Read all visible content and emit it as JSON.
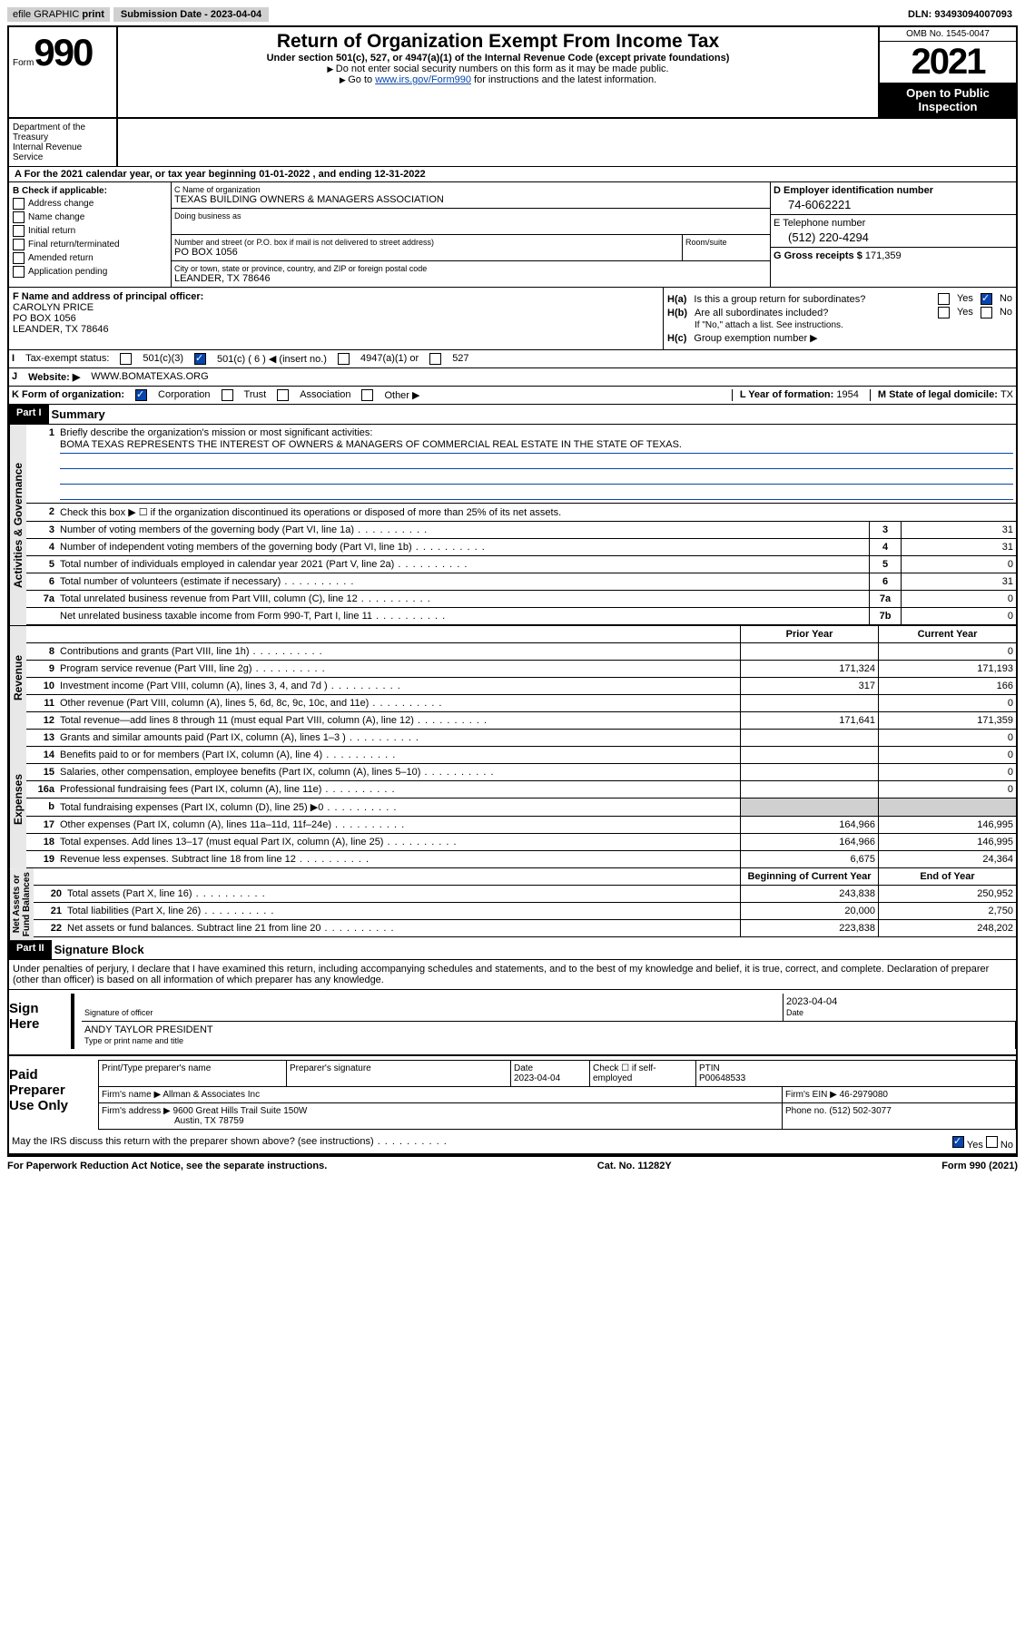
{
  "header": {
    "efile_text": "efile GRAPHIC",
    "print": "print",
    "submission_label": "Submission Date - ",
    "submission_date": "2023-04-04",
    "dln_label": "DLN: ",
    "dln": "93493094007093"
  },
  "form": {
    "form_word": "Form",
    "number": "990",
    "title": "Return of Organization Exempt From Income Tax",
    "subtitle": "Under section 501(c), 527, or 4947(a)(1) of the Internal Revenue Code (except private foundations)",
    "instr1": "Do not enter social security numbers on this form as it may be made public.",
    "instr2_pre": "Go to ",
    "instr2_link": "www.irs.gov/Form990",
    "instr2_post": " for instructions and the latest information.",
    "omb": "OMB No. 1545-0047",
    "year": "2021",
    "inspection1": "Open to Public",
    "inspection2": "Inspection",
    "dept1": "Department of the Treasury",
    "dept2": "Internal Revenue Service"
  },
  "period": {
    "text_pre": "For the 2021 calendar year, or tax year beginning ",
    "begin": "01-01-2022",
    "text_mid": " , and ending ",
    "end": "12-31-2022"
  },
  "section_b": {
    "label": "B Check if applicable:",
    "items": [
      "Address change",
      "Name change",
      "Initial return",
      "Final return/terminated",
      "Amended return",
      "Application pending"
    ]
  },
  "section_c": {
    "name_label": "C Name of organization",
    "name": "TEXAS BUILDING OWNERS & MANAGERS ASSOCIATION",
    "dba_label": "Doing business as",
    "street_label": "Number and street (or P.O. box if mail is not delivered to street address)",
    "room_label": "Room/suite",
    "street": "PO BOX 1056",
    "city_label": "City or town, state or province, country, and ZIP or foreign postal code",
    "city": "LEANDER, TX  78646"
  },
  "section_d": {
    "label": "D Employer identification number",
    "ein": "74-6062221",
    "phone_label": "E Telephone number",
    "phone": "(512) 220-4294",
    "gross_label": "G Gross receipts $ ",
    "gross": "171,359"
  },
  "section_f": {
    "label": "F Name and address of principal officer:",
    "name": "CAROLYN PRICE",
    "street": "PO BOX 1056",
    "city": "LEANDER, TX  78646"
  },
  "section_h": {
    "a_label": "H(a)",
    "a_text": "Is this a group return for subordinates?",
    "b_label": "H(b)",
    "b_text": "Are all subordinates included?",
    "attach": "If \"No,\" attach a list. See instructions.",
    "c_label": "H(c)",
    "c_text": "Group exemption number ▶",
    "yes": "Yes",
    "no": "No"
  },
  "section_i": {
    "label": "Tax-exempt status:",
    "opt1": "501(c)(3)",
    "opt2_pre": "501(c) ( ",
    "opt2_num": "6",
    "opt2_post": " ) ◀ (insert no.)",
    "opt3": "4947(a)(1) or",
    "opt4": "527"
  },
  "section_j": {
    "label": "Website: ▶",
    "url": "WWW.BOMATEXAS.ORG"
  },
  "section_k": {
    "label": "K Form of organization:",
    "opts": [
      "Corporation",
      "Trust",
      "Association",
      "Other ▶"
    ],
    "l_label": "L Year of formation: ",
    "l_val": "1954",
    "m_label": "M State of legal domicile: ",
    "m_val": "TX"
  },
  "part1": {
    "header": "Part I",
    "title": "Summary",
    "mission_label": "Briefly describe the organization's mission or most significant activities:",
    "mission": "BOMA TEXAS REPRESENTS THE INTEREST OF OWNERS & MANAGERS OF COMMERCIAL REAL ESTATE IN THE STATE OF TEXAS.",
    "line2": "Check this box ▶ ☐  if the organization discontinued its operations or disposed of more than 25% of its net assets.",
    "tabs": {
      "governance": "Activities & Governance",
      "revenue": "Revenue",
      "expenses": "Expenses",
      "netassets": "Net Assets or\nFund Balances"
    },
    "col_prior": "Prior Year",
    "col_current": "Current Year",
    "col_begin": "Beginning of Current Year",
    "col_end": "End of Year"
  },
  "governance_lines": [
    {
      "num": "3",
      "text": "Number of voting members of the governing body (Part VI, line 1a)",
      "label": "3",
      "val": "31"
    },
    {
      "num": "4",
      "text": "Number of independent voting members of the governing body (Part VI, line 1b)",
      "label": "4",
      "val": "31"
    },
    {
      "num": "5",
      "text": "Total number of individuals employed in calendar year 2021 (Part V, line 2a)",
      "label": "5",
      "val": "0"
    },
    {
      "num": "6",
      "text": "Total number of volunteers (estimate if necessary)",
      "label": "6",
      "val": "31"
    },
    {
      "num": "7a",
      "text": "Total unrelated business revenue from Part VIII, column (C), line 12",
      "label": "7a",
      "val": "0"
    },
    {
      "num": "",
      "text": "Net unrelated business taxable income from Form 990-T, Part I, line 11",
      "label": "7b",
      "val": "0"
    }
  ],
  "revenue_lines": [
    {
      "num": "8",
      "text": "Contributions and grants (Part VIII, line 1h)",
      "prior": "",
      "current": "0"
    },
    {
      "num": "9",
      "text": "Program service revenue (Part VIII, line 2g)",
      "prior": "171,324",
      "current": "171,193"
    },
    {
      "num": "10",
      "text": "Investment income (Part VIII, column (A), lines 3, 4, and 7d )",
      "prior": "317",
      "current": "166"
    },
    {
      "num": "11",
      "text": "Other revenue (Part VIII, column (A), lines 5, 6d, 8c, 9c, 10c, and 11e)",
      "prior": "",
      "current": "0"
    },
    {
      "num": "12",
      "text": "Total revenue—add lines 8 through 11 (must equal Part VIII, column (A), line 12)",
      "prior": "171,641",
      "current": "171,359"
    }
  ],
  "expense_lines": [
    {
      "num": "13",
      "text": "Grants and similar amounts paid (Part IX, column (A), lines 1–3 )",
      "prior": "",
      "current": "0"
    },
    {
      "num": "14",
      "text": "Benefits paid to or for members (Part IX, column (A), line 4)",
      "prior": "",
      "current": "0"
    },
    {
      "num": "15",
      "text": "Salaries, other compensation, employee benefits (Part IX, column (A), lines 5–10)",
      "prior": "",
      "current": "0"
    },
    {
      "num": "16a",
      "text": "Professional fundraising fees (Part IX, column (A), line 11e)",
      "prior": "",
      "current": "0"
    },
    {
      "num": "b",
      "text": "Total fundraising expenses (Part IX, column (D), line 25) ▶0",
      "prior": "gray",
      "current": "gray"
    },
    {
      "num": "17",
      "text": "Other expenses (Part IX, column (A), lines 11a–11d, 11f–24e)",
      "prior": "164,966",
      "current": "146,995"
    },
    {
      "num": "18",
      "text": "Total expenses. Add lines 13–17 (must equal Part IX, column (A), line 25)",
      "prior": "164,966",
      "current": "146,995"
    },
    {
      "num": "19",
      "text": "Revenue less expenses. Subtract line 18 from line 12",
      "prior": "6,675",
      "current": "24,364"
    }
  ],
  "asset_lines": [
    {
      "num": "20",
      "text": "Total assets (Part X, line 16)",
      "prior": "243,838",
      "current": "250,952"
    },
    {
      "num": "21",
      "text": "Total liabilities (Part X, line 26)",
      "prior": "20,000",
      "current": "2,750"
    },
    {
      "num": "22",
      "text": "Net assets or fund balances. Subtract line 21 from line 20",
      "prior": "223,838",
      "current": "248,202"
    }
  ],
  "part2": {
    "header": "Part II",
    "title": "Signature Block",
    "penalty": "Under penalties of perjury, I declare that I have examined this return, including accompanying schedules and statements, and to the best of my knowledge and belief, it is true, correct, and complete. Declaration of preparer (other than officer) is based on all information of which preparer has any knowledge."
  },
  "sign": {
    "label1": "Sign",
    "label2": "Here",
    "sig_label": "Signature of officer",
    "date_label": "Date",
    "date": "2023-04-04",
    "name": "ANDY TAYLOR  PRESIDENT",
    "name_label": "Type or print name and title"
  },
  "preparer": {
    "label1": "Paid",
    "label2": "Preparer",
    "label3": "Use Only",
    "col1": "Print/Type preparer's name",
    "col2": "Preparer's signature",
    "col3_label": "Date",
    "col3": "2023-04-04",
    "col4_label": "Check ☐ if self-employed",
    "col5_label": "PTIN",
    "ptin": "P00648533",
    "firm_name_label": "Firm's name    ▶ ",
    "firm_name": "Allman & Associates Inc",
    "firm_ein_label": "Firm's EIN ▶ ",
    "firm_ein": "46-2979080",
    "firm_addr_label": "Firm's address ▶ ",
    "firm_addr1": "9600 Great Hills Trail Suite 150W",
    "firm_addr2": "Austin, TX  78759",
    "phone_label": "Phone no. ",
    "phone": "(512) 502-3077"
  },
  "footer": {
    "discuss": "May the IRS discuss this return with the preparer shown above? (see instructions)",
    "paperwork": "For Paperwork Reduction Act Notice, see the separate instructions.",
    "cat": "Cat. No. 11282Y",
    "form": "Form 990 (2021)"
  }
}
